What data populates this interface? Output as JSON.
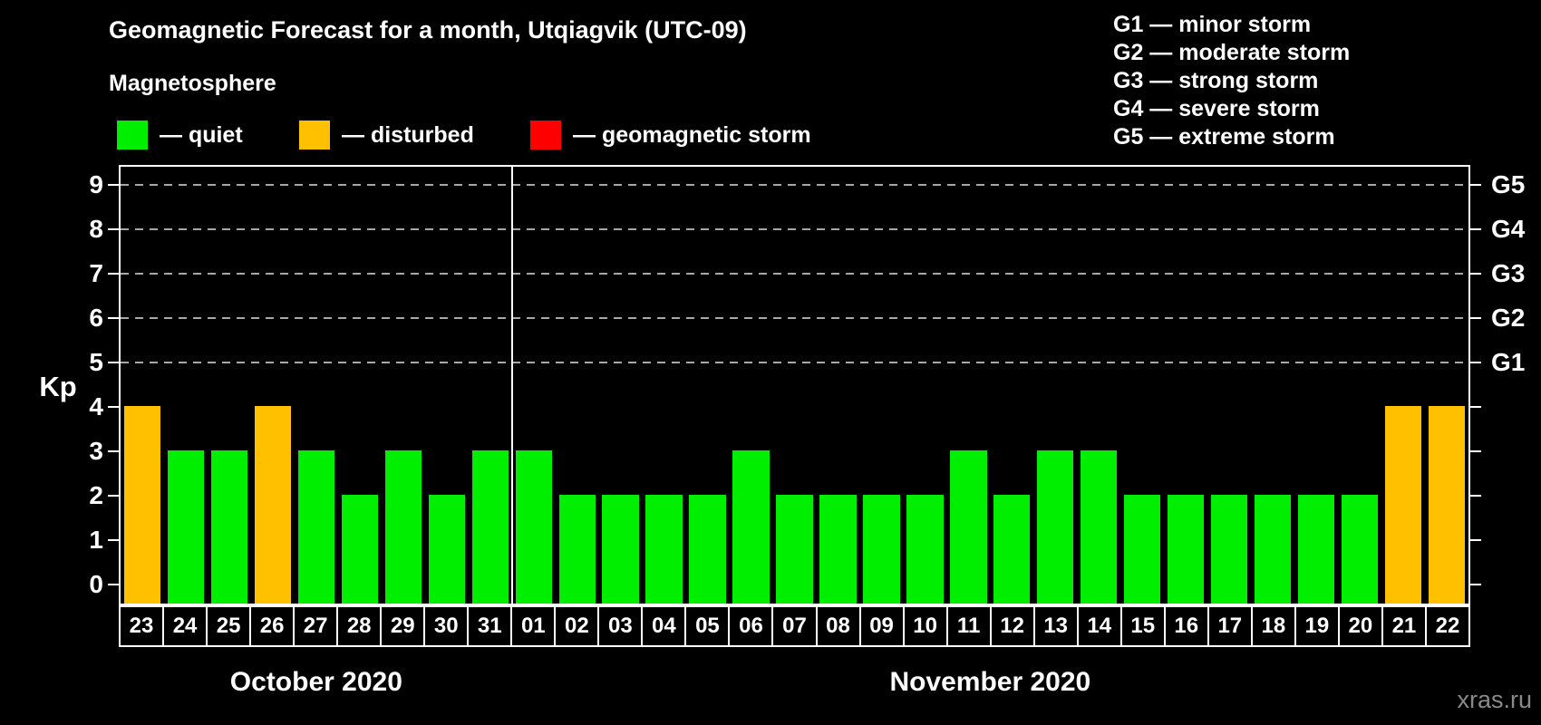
{
  "title": "Geomagnetic Forecast for a month, Utqiagvik (UTC-09)",
  "legend": {
    "heading": "Magnetosphere",
    "items": [
      {
        "key": "quiet",
        "label": "— quiet",
        "color": "#00EE00"
      },
      {
        "key": "disturbed",
        "label": "— disturbed",
        "color": "#FFC000"
      },
      {
        "key": "storm",
        "label": "— geomagnetic storm",
        "color": "#FF0000"
      }
    ],
    "status_colors": {
      "quiet": "#00EE00",
      "disturbed": "#FFC000",
      "storm": "#FF0000"
    }
  },
  "g_scale_legend": [
    "G1 — minor storm",
    "G2 — moderate storm",
    "G3 — strong storm",
    "G4 — severe storm",
    "G5 — extreme storm"
  ],
  "watermark": "xras.ru",
  "colors": {
    "background": "#000000",
    "axis": "#FFFFFF",
    "grid": "#A8A8A8",
    "watermark_text": "#8A8A8A"
  },
  "chart_data": {
    "type": "bar",
    "title": "Geomagnetic Forecast for a month, Utqiagvik (UTC-09)",
    "ylabel": "Kp",
    "ylim": [
      0,
      9
    ],
    "yticks": [
      0,
      1,
      2,
      3,
      4,
      5,
      6,
      7,
      8,
      9
    ],
    "gridlines_at_kp": [
      5,
      6,
      7,
      8,
      9
    ],
    "grid_style": "dashed horizontal lines at G-storm levels only",
    "right_axis_labels": [
      {
        "kp": 5,
        "label": "G1"
      },
      {
        "kp": 6,
        "label": "G2"
      },
      {
        "kp": 7,
        "label": "G3"
      },
      {
        "kp": 8,
        "label": "G4"
      },
      {
        "kp": 9,
        "label": "G5"
      }
    ],
    "x_groups": [
      {
        "label": "October 2020",
        "categories": [
          "23",
          "24",
          "25",
          "26",
          "27",
          "28",
          "29",
          "30",
          "31"
        ],
        "values": [
          4,
          3,
          3,
          4,
          3,
          2,
          3,
          2,
          3
        ],
        "statuses": [
          "disturbed",
          "quiet",
          "quiet",
          "disturbed",
          "quiet",
          "quiet",
          "quiet",
          "quiet",
          "quiet"
        ]
      },
      {
        "label": "November 2020",
        "categories": [
          "01",
          "02",
          "03",
          "04",
          "05",
          "06",
          "07",
          "08",
          "09",
          "10",
          "11",
          "12",
          "13",
          "14",
          "15",
          "16",
          "17",
          "18",
          "19",
          "20",
          "21",
          "22"
        ],
        "values": [
          3,
          2,
          2,
          2,
          2,
          3,
          2,
          2,
          2,
          2,
          3,
          2,
          3,
          3,
          2,
          2,
          2,
          2,
          2,
          2,
          4,
          4
        ],
        "statuses": [
          "quiet",
          "quiet",
          "quiet",
          "quiet",
          "quiet",
          "quiet",
          "quiet",
          "quiet",
          "quiet",
          "quiet",
          "quiet",
          "quiet",
          "quiet",
          "quiet",
          "quiet",
          "quiet",
          "quiet",
          "quiet",
          "quiet",
          "quiet",
          "disturbed",
          "disturbed"
        ]
      }
    ]
  }
}
